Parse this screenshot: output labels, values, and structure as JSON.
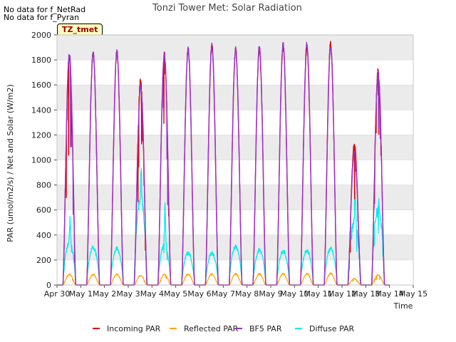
{
  "notes": [
    "No data for f_NetRad",
    "No data for f_Pyran"
  ],
  "badge": "TZ_tmet",
  "colors": {
    "incoming": "#dd0000",
    "reflected": "#ffa500",
    "bf5": "#9932cc",
    "diffuse": "#00eeee",
    "band": "#ebebeb",
    "grid": "#d8d8d8"
  },
  "chart_data": {
    "type": "line",
    "title": "Tonzi Tower Met: Solar Radiation",
    "xlabel": "Time",
    "ylabel": "PAR (umol/m2/s) / Net and Solar (W/m2)",
    "ylim": [
      0,
      2000
    ],
    "yticks": [
      0,
      200,
      400,
      600,
      800,
      1000,
      1200,
      1400,
      1600,
      1800,
      2000
    ],
    "xlim": [
      0,
      15
    ],
    "xticks": [
      "Apr 30",
      "May 1",
      "May 2",
      "May 3",
      "May 4",
      "May 5",
      "May 6",
      "May 7",
      "May 8",
      "May 9",
      "May 10",
      "May 11",
      "May 12",
      "May 13",
      "May 14",
      "May 15"
    ],
    "legend": [
      "Incoming PAR",
      "Reflected PAR",
      "BF5 PAR",
      "Diffuse PAR"
    ],
    "daylight_hours": [
      6,
      19
    ],
    "daily": [
      {
        "day": "Apr 30",
        "incoming": 1830,
        "bf5": 1840,
        "reflected": 85,
        "diffuse": 340,
        "diffuse_peak": 550
      },
      {
        "day": "May 1",
        "incoming": 1850,
        "bf5": 1860,
        "reflected": 85,
        "diffuse": 300
      },
      {
        "day": "May 2",
        "incoming": 1860,
        "bf5": 1860,
        "reflected": 85,
        "diffuse": 290
      },
      {
        "day": "May 3",
        "incoming": 1630,
        "bf5": 1590,
        "reflected": 75,
        "diffuse": 700,
        "diffuse_peak": 930
      },
      {
        "day": "May 4",
        "incoming": 1850,
        "bf5": 1840,
        "reflected": 85,
        "diffuse": 320,
        "diffuse_peak": 640
      },
      {
        "day": "May 5",
        "incoming": 1880,
        "bf5": 1890,
        "reflected": 88,
        "diffuse": 255
      },
      {
        "day": "May 6",
        "incoming": 1910,
        "bf5": 1920,
        "reflected": 88,
        "diffuse": 255
      },
      {
        "day": "May 7",
        "incoming": 1880,
        "bf5": 1880,
        "reflected": 88,
        "diffuse": 310
      },
      {
        "day": "May 8",
        "incoming": 1890,
        "bf5": 1910,
        "reflected": 88,
        "diffuse": 280
      },
      {
        "day": "May 9",
        "incoming": 1910,
        "bf5": 1920,
        "reflected": 90,
        "diffuse": 270
      },
      {
        "day": "May 10",
        "incoming": 1900,
        "bf5": 1920,
        "reflected": 90,
        "diffuse": 275
      },
      {
        "day": "May 11",
        "incoming": 1920,
        "bf5": 1900,
        "reflected": 92,
        "diffuse": 290
      },
      {
        "day": "May 12",
        "incoming": 1120,
        "bf5": 1070,
        "reflected": 50,
        "diffuse": 500,
        "diffuse_peak": 780
      },
      {
        "day": "May 13",
        "incoming": 1710,
        "bf5": 1700,
        "reflected": 80,
        "diffuse": 600,
        "diffuse_peak": 670
      }
    ]
  }
}
